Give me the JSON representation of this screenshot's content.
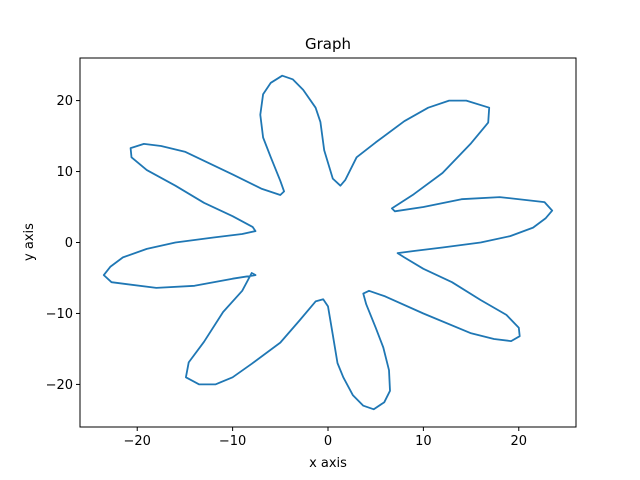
{
  "chart_data": {
    "type": "line",
    "title": "Graph",
    "xlabel": "x axis",
    "ylabel": "y axis",
    "xlim": [
      -26,
      26
    ],
    "ylim": [
      -26,
      26
    ],
    "xticks": [
      -20,
      -10,
      0,
      10,
      20
    ],
    "yticks": [
      -20,
      -10,
      0,
      10,
      20
    ],
    "grid": false,
    "series": [
      {
        "color": "#1f77b4",
        "points": [
          [
            16.0,
            0.0
          ],
          [
            19.1,
            0.9
          ],
          [
            21.5,
            2.1
          ],
          [
            22.8,
            3.4
          ],
          [
            23.5,
            4.5
          ],
          [
            22.7,
            5.7
          ],
          [
            18.0,
            6.4
          ],
          [
            14.0,
            6.1
          ],
          [
            10.0,
            5.0
          ],
          [
            7.0,
            4.4
          ],
          [
            6.7,
            4.8
          ],
          [
            9.0,
            6.8
          ],
          [
            12.0,
            9.8
          ],
          [
            15.0,
            14.0
          ],
          [
            16.8,
            16.9
          ],
          [
            16.9,
            19.0
          ],
          [
            14.5,
            20.0
          ],
          [
            12.7,
            20.0
          ],
          [
            10.5,
            19.0
          ],
          [
            8.0,
            17.1
          ],
          [
            5.0,
            14.1
          ],
          [
            3.0,
            12.0
          ],
          [
            1.8,
            8.8
          ],
          [
            1.3,
            8.0
          ],
          [
            0.5,
            9.0
          ],
          [
            -0.4,
            13.0
          ],
          [
            -0.8,
            17.0
          ],
          [
            -1.3,
            19.0
          ],
          [
            -2.6,
            21.5
          ],
          [
            -3.7,
            23.0
          ],
          [
            -4.8,
            23.5
          ],
          [
            -6.0,
            22.5
          ],
          [
            -6.8,
            20.9
          ],
          [
            -7.1,
            18.0
          ],
          [
            -6.8,
            14.8
          ],
          [
            -6.0,
            12.0
          ],
          [
            -5.0,
            8.7
          ],
          [
            -4.6,
            7.2
          ],
          [
            -5.0,
            6.7
          ],
          [
            -7.0,
            7.6
          ],
          [
            -10.0,
            9.6
          ],
          [
            -15.0,
            12.8
          ],
          [
            -17.5,
            13.6
          ],
          [
            -19.3,
            13.9
          ],
          [
            -20.7,
            13.3
          ],
          [
            -20.6,
            12.0
          ],
          [
            -19.0,
            10.2
          ],
          [
            -16.0,
            8.0
          ],
          [
            -13.0,
            5.6
          ],
          [
            -10.0,
            3.7
          ],
          [
            -7.9,
            2.2
          ],
          [
            -7.6,
            1.6
          ],
          [
            -9.0,
            1.2
          ],
          [
            -12.0,
            0.7
          ],
          [
            -16.0,
            0.0
          ],
          [
            -19.0,
            -0.9
          ],
          [
            -21.5,
            -2.1
          ],
          [
            -22.8,
            -3.4
          ],
          [
            -23.5,
            -4.6
          ],
          [
            -22.7,
            -5.6
          ],
          [
            -18.0,
            -6.4
          ],
          [
            -14.0,
            -6.1
          ],
          [
            -10.0,
            -5.1
          ],
          [
            -7.6,
            -4.6
          ],
          [
            -8.0,
            -4.3
          ],
          [
            -9.0,
            -6.8
          ],
          [
            -11.0,
            -9.8
          ],
          [
            -13.0,
            -14.0
          ],
          [
            -14.6,
            -16.9
          ],
          [
            -14.9,
            -19.0
          ],
          [
            -13.5,
            -20.0
          ],
          [
            -11.8,
            -20.0
          ],
          [
            -10.0,
            -19.0
          ],
          [
            -8.0,
            -17.1
          ],
          [
            -5.0,
            -14.1
          ],
          [
            -3.0,
            -11.0
          ],
          [
            -1.3,
            -8.3
          ],
          [
            -0.5,
            -8.0
          ],
          [
            0.0,
            -9.0
          ],
          [
            0.5,
            -13.0
          ],
          [
            1.0,
            -17.0
          ],
          [
            1.6,
            -19.0
          ],
          [
            2.6,
            -21.5
          ],
          [
            3.7,
            -23.0
          ],
          [
            4.8,
            -23.5
          ],
          [
            5.9,
            -22.5
          ],
          [
            6.5,
            -20.9
          ],
          [
            6.4,
            -18.0
          ],
          [
            5.8,
            -14.8
          ],
          [
            5.0,
            -12.0
          ],
          [
            4.0,
            -8.7
          ],
          [
            3.7,
            -7.2
          ],
          [
            4.3,
            -6.8
          ],
          [
            6.0,
            -7.6
          ],
          [
            10.0,
            -10.0
          ],
          [
            15.0,
            -12.8
          ],
          [
            17.4,
            -13.6
          ],
          [
            19.2,
            -13.9
          ],
          [
            20.1,
            -13.2
          ],
          [
            20.0,
            -12.0
          ],
          [
            18.7,
            -10.2
          ],
          [
            16.0,
            -8.1
          ],
          [
            13.0,
            -5.6
          ],
          [
            10.0,
            -3.7
          ],
          [
            8.0,
            -2.1
          ],
          [
            7.3,
            -1.5
          ],
          [
            9.0,
            -1.2
          ],
          [
            12.0,
            -0.7
          ],
          [
            16.0,
            0.0
          ]
        ]
      }
    ]
  }
}
